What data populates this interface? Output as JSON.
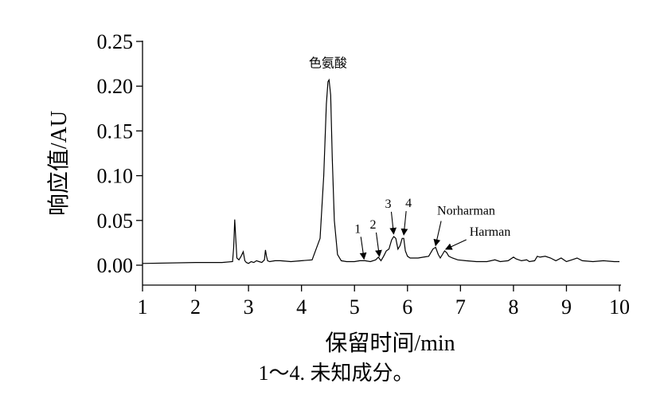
{
  "chart_data": {
    "type": "line",
    "xlabel": "保留时间/min",
    "ylabel": "响应值/AU",
    "xlim": [
      1,
      10
    ],
    "ylim": [
      0,
      0.25
    ],
    "xticks": [
      "1",
      "2",
      "3",
      "4",
      "5",
      "6",
      "7",
      "8",
      "9",
      "10"
    ],
    "yticks": [
      "0.00",
      "0.05",
      "0.10",
      "0.15",
      "0.20",
      "0.25"
    ],
    "grid": false,
    "caption": "1～4. 未知成分。",
    "series": [
      {
        "x": [
          1.0,
          2.0,
          2.5,
          2.7,
          2.72,
          2.74,
          2.76,
          2.78,
          2.82,
          2.86,
          2.9,
          2.93,
          2.96,
          3.0,
          3.05,
          3.1,
          3.15,
          3.2,
          3.25,
          3.3,
          3.32,
          3.34,
          3.36,
          3.4,
          3.5,
          3.6,
          3.8,
          4.0,
          4.2,
          4.35,
          4.42,
          4.47,
          4.5,
          4.52,
          4.55,
          4.58,
          4.62,
          4.68,
          4.75,
          4.85,
          5.0,
          5.1,
          5.2,
          5.3,
          5.4,
          5.45,
          5.5,
          5.55,
          5.6,
          5.65,
          5.7,
          5.74,
          5.78,
          5.82,
          5.86,
          5.9,
          5.93,
          5.96,
          6.0,
          6.05,
          6.1,
          6.2,
          6.3,
          6.4,
          6.48,
          6.53,
          6.58,
          6.62,
          6.66,
          6.7,
          6.74,
          6.78,
          6.85,
          6.95,
          7.1,
          7.3,
          7.5,
          7.65,
          7.75,
          7.9,
          8.0,
          8.05,
          8.15,
          8.25,
          8.3,
          8.4,
          8.45,
          8.5,
          8.6,
          8.7,
          8.8,
          8.9,
          9.0,
          9.1,
          9.2,
          9.3,
          9.5,
          9.7,
          9.9,
          10.0
        ],
        "y": [
          0.002,
          0.003,
          0.003,
          0.004,
          0.02,
          0.051,
          0.03,
          0.008,
          0.006,
          0.01,
          0.015,
          0.005,
          0.003,
          0.002,
          0.004,
          0.003,
          0.005,
          0.004,
          0.003,
          0.006,
          0.017,
          0.01,
          0.005,
          0.004,
          0.005,
          0.005,
          0.004,
          0.005,
          0.006,
          0.03,
          0.1,
          0.18,
          0.205,
          0.207,
          0.19,
          0.12,
          0.05,
          0.012,
          0.005,
          0.004,
          0.004,
          0.005,
          0.005,
          0.004,
          0.006,
          0.009,
          0.005,
          0.01,
          0.016,
          0.018,
          0.028,
          0.032,
          0.03,
          0.018,
          0.022,
          0.03,
          0.03,
          0.016,
          0.01,
          0.008,
          0.008,
          0.008,
          0.009,
          0.01,
          0.018,
          0.02,
          0.012,
          0.008,
          0.012,
          0.016,
          0.014,
          0.01,
          0.008,
          0.006,
          0.005,
          0.004,
          0.004,
          0.006,
          0.004,
          0.005,
          0.009,
          0.007,
          0.005,
          0.006,
          0.004,
          0.005,
          0.01,
          0.009,
          0.01,
          0.008,
          0.005,
          0.008,
          0.004,
          0.006,
          0.008,
          0.005,
          0.004,
          0.005,
          0.004,
          0.004
        ]
      }
    ],
    "annotations": [
      {
        "text": "色氨酸",
        "x": 4.5,
        "y": 0.207,
        "arrow": false
      },
      {
        "text": "1",
        "x": 5.18,
        "y": 0.005,
        "arrow": true
      },
      {
        "text": "2",
        "x": 5.47,
        "y": 0.008,
        "arrow": true
      },
      {
        "text": "3",
        "x": 5.74,
        "y": 0.033,
        "arrow": true
      },
      {
        "text": "4",
        "x": 5.93,
        "y": 0.032,
        "arrow": true
      },
      {
        "text": "Norharman",
        "x": 6.53,
        "y": 0.02,
        "arrow": true
      },
      {
        "text": "Harman",
        "x": 6.72,
        "y": 0.016,
        "arrow": true
      }
    ]
  }
}
